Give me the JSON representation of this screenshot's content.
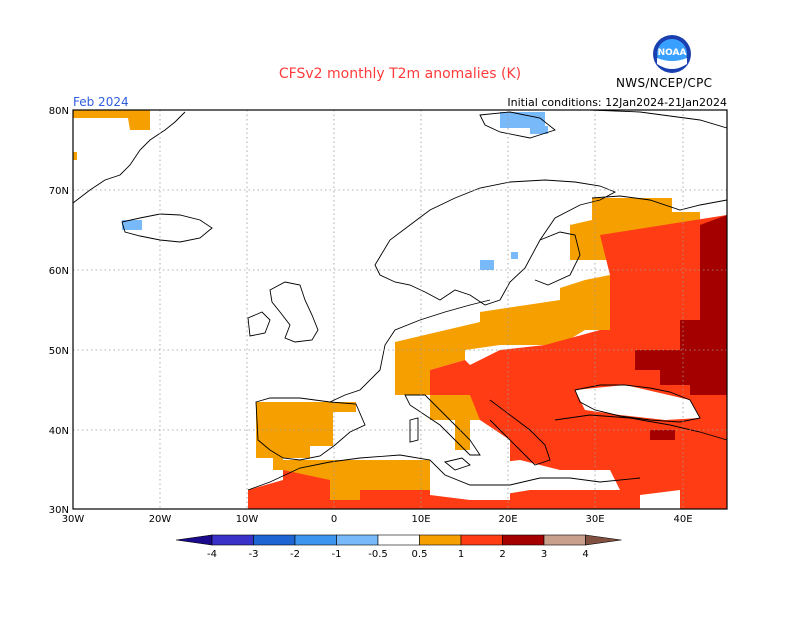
{
  "header": {
    "title": "CFSv2 monthly T2m anomalies (K)",
    "month": "Feb 2024",
    "initial_conditions": "Initial conditions: 12Jan2024-21Jan2024",
    "organization": "NWS/NCEP/CPC",
    "logo_text": "NOAA"
  },
  "map": {
    "lat_labels": [
      "30N",
      "40N",
      "50N",
      "60N",
      "70N",
      "80N"
    ],
    "lon_labels": [
      "30W",
      "20W",
      "10W",
      "0",
      "10E",
      "20E",
      "30E",
      "40E"
    ],
    "grid": true
  },
  "legend": {
    "labels": [
      "-4",
      "-3",
      "-2",
      "-1",
      "-0.5",
      "0.5",
      "1",
      "2",
      "3",
      "4"
    ],
    "colors": [
      "#1c0a8c",
      "#3a32c8",
      "#1e64d2",
      "#3c96f0",
      "#78b9fa",
      "#ffffff",
      "#f5a000",
      "#ff3c14",
      "#a50000",
      "#c8a08c",
      "#825040"
    ]
  }
}
